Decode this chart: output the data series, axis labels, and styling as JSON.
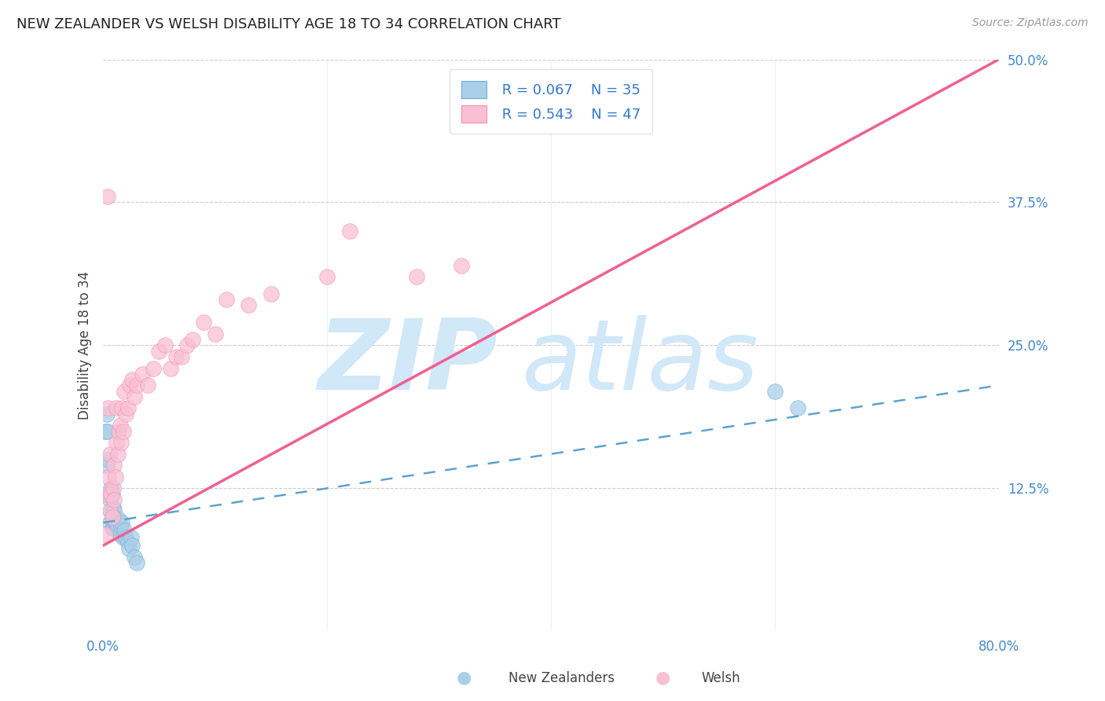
{
  "title": "NEW ZEALANDER VS WELSH DISABILITY AGE 18 TO 34 CORRELATION CHART",
  "source_text": "Source: ZipAtlas.com",
  "ylabel": "Disability Age 18 to 34",
  "legend_label1": "New Zealanders",
  "legend_label2": "Welsh",
  "legend_r1": "R = 0.067",
  "legend_n1": "N = 35",
  "legend_r2": "R = 0.543",
  "legend_n2": "N = 47",
  "xmin": 0.0,
  "xmax": 0.8,
  "ymin": 0.0,
  "ymax": 0.5,
  "yticks": [
    0.0,
    0.125,
    0.25,
    0.375,
    0.5
  ],
  "ytick_labels": [
    "",
    "12.5%",
    "25.0%",
    "37.5%",
    "50.0%"
  ],
  "color_nz": "#6baed6",
  "color_nz_fill": "#aacfe8",
  "color_welsh": "#f48cb0",
  "color_welsh_fill": "#f9c0d4",
  "color_nz_line": "#5ba3d0",
  "color_welsh_line": "#f06090",
  "watermark_color": "#d0e8f8",
  "background_color": "#ffffff",
  "grid_color": "#cccccc",
  "nz_line_start_y": 0.095,
  "nz_line_end_y": 0.215,
  "welsh_line_start_y": 0.075,
  "welsh_line_end_y": 0.5,
  "nz_x": [
    0.002,
    0.003,
    0.003,
    0.004,
    0.005,
    0.005,
    0.006,
    0.006,
    0.007,
    0.007,
    0.008,
    0.008,
    0.008,
    0.009,
    0.009,
    0.01,
    0.01,
    0.011,
    0.012,
    0.013,
    0.014,
    0.015,
    0.016,
    0.017,
    0.018,
    0.019,
    0.02,
    0.022,
    0.023,
    0.025,
    0.026,
    0.028,
    0.03,
    0.6,
    0.62
  ],
  "nz_y": [
    0.175,
    0.145,
    0.19,
    0.175,
    0.12,
    0.15,
    0.095,
    0.115,
    0.105,
    0.125,
    0.09,
    0.1,
    0.12,
    0.095,
    0.108,
    0.09,
    0.105,
    0.095,
    0.095,
    0.09,
    0.098,
    0.085,
    0.092,
    0.095,
    0.082,
    0.088,
    0.082,
    0.078,
    0.072,
    0.082,
    0.075,
    0.065,
    0.06,
    0.21,
    0.195
  ],
  "welsh_x": [
    0.002,
    0.003,
    0.004,
    0.004,
    0.005,
    0.006,
    0.006,
    0.007,
    0.008,
    0.009,
    0.01,
    0.01,
    0.011,
    0.012,
    0.012,
    0.013,
    0.014,
    0.015,
    0.016,
    0.017,
    0.018,
    0.019,
    0.02,
    0.022,
    0.024,
    0.026,
    0.028,
    0.03,
    0.035,
    0.04,
    0.045,
    0.05,
    0.055,
    0.06,
    0.065,
    0.07,
    0.075,
    0.08,
    0.09,
    0.1,
    0.11,
    0.13,
    0.15,
    0.2,
    0.22,
    0.28,
    0.32
  ],
  "welsh_y": [
    0.085,
    0.12,
    0.195,
    0.38,
    0.135,
    0.105,
    0.155,
    0.12,
    0.1,
    0.125,
    0.115,
    0.145,
    0.135,
    0.165,
    0.195,
    0.155,
    0.175,
    0.18,
    0.165,
    0.195,
    0.175,
    0.21,
    0.19,
    0.195,
    0.215,
    0.22,
    0.205,
    0.215,
    0.225,
    0.215,
    0.23,
    0.245,
    0.25,
    0.23,
    0.24,
    0.24,
    0.25,
    0.255,
    0.27,
    0.26,
    0.29,
    0.285,
    0.295,
    0.31,
    0.35,
    0.31,
    0.32
  ]
}
